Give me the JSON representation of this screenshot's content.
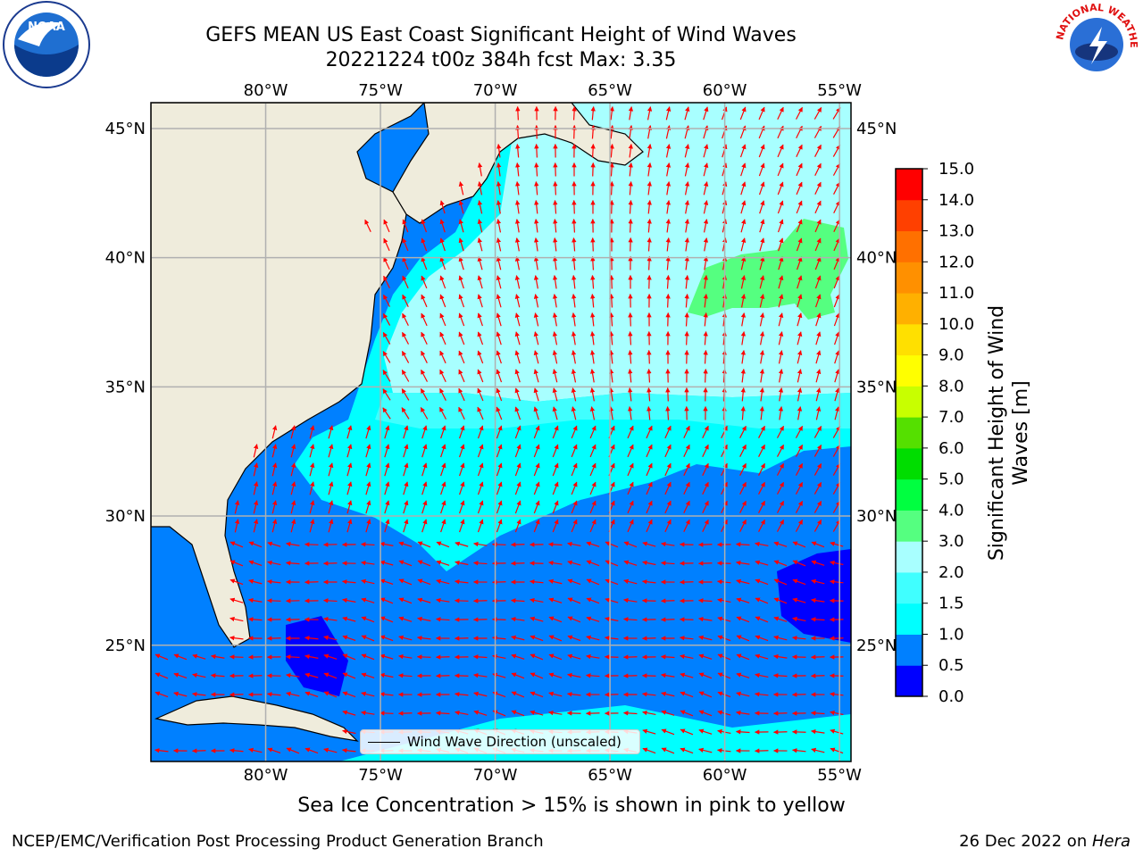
{
  "title_line1": "GEFS MEAN US East Coast Significant Height of Wind Waves",
  "title_line2": "20221224 t00z 384h fcst   Max: 3.35",
  "logos": {
    "left": "noaa-logo",
    "right": "national-weather-service-logo",
    "left_text": "NOAA",
    "right_text": "NATIONAL WEATHER SERVICE"
  },
  "map": {
    "projection": "lat-lon",
    "lon_range": [
      -85,
      -54.5
    ],
    "lat_range": [
      20.5,
      46
    ],
    "lon_ticks": [
      "80°W",
      "75°W",
      "70°W",
      "65°W",
      "60°W",
      "55°W"
    ],
    "lat_ticks": [
      "45°N",
      "40°N",
      "35°N",
      "30°N",
      "25°N"
    ],
    "land_color": "#efecdc",
    "grid": true,
    "arrow_color": "#ff0000"
  },
  "legend_label": "Wind Wave Direction (unscaled)",
  "colorbar": {
    "label": "Significant Height of Wind Waves [m]",
    "ticks": [
      "0.0",
      "0.5",
      "1.0",
      "1.5",
      "2.0",
      "3.0",
      "4.0",
      "5.0",
      "6.0",
      "7.0",
      "8.0",
      "9.0",
      "10.0",
      "11.0",
      "12.0",
      "13.0",
      "14.0",
      "15.0"
    ],
    "colors": [
      "#0000ff",
      "#0080ff",
      "#00ffff",
      "#40ffff",
      "#a8ffff",
      "#55ff80",
      "#00ff40",
      "#00dd00",
      "#55e000",
      "#c8ff00",
      "#ffff00",
      "#ffe000",
      "#ffb000",
      "#ff9000",
      "#ff7000",
      "#ff4000",
      "#ff0000"
    ]
  },
  "sea_ice_note": "Sea Ice Concentration > 15% is shown in pink to yellow",
  "footer_left": "NCEP/EMC/Verification Post Processing Product Generation Branch",
  "footer_date": "26 Dec 2022 on ",
  "footer_host": "Hera"
}
